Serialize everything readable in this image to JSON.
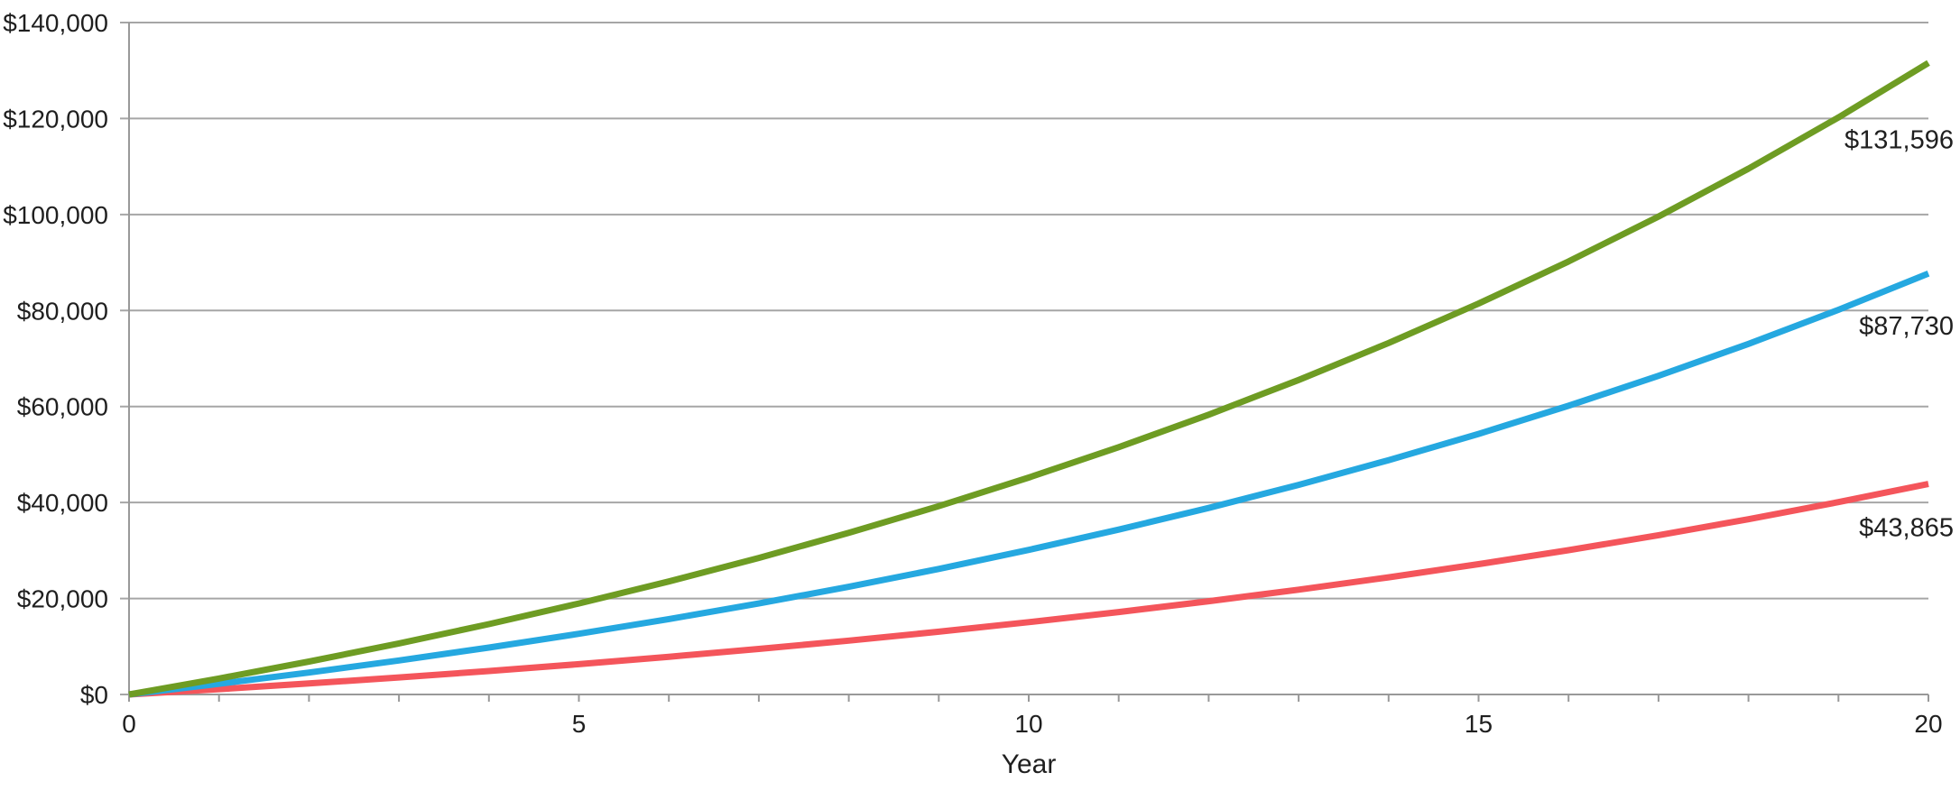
{
  "chart_data": {
    "type": "line",
    "x": [
      0,
      1,
      2,
      3,
      4,
      5,
      6,
      7,
      8,
      9,
      10,
      11,
      12,
      13,
      14,
      15,
      16,
      17,
      18,
      19,
      20
    ],
    "xlabel": "Year",
    "xlim": [
      0,
      20
    ],
    "x_tick_positions": [
      0,
      5,
      10,
      15,
      20
    ],
    "x_tick_labels": [
      "0",
      "5",
      "10",
      "15",
      "20"
    ],
    "x_minor_tick_step": 1,
    "ylim": [
      0,
      140000
    ],
    "y_tick_positions": [
      0,
      20000,
      40000,
      60000,
      80000,
      100000,
      120000,
      140000
    ],
    "y_tick_labels": [
      "$0",
      "$20,000",
      "$40,000",
      "$60,000",
      "$80,000",
      "$100,000",
      "$120,000",
      "$140,000"
    ],
    "grid": "horizontal",
    "legend": "none",
    "series": [
      {
        "id": "low",
        "color": "#F4555B",
        "end_label": "$43,865",
        "values": [
          0,
          1106,
          2286,
          3545,
          4888,
          6321,
          7851,
          9482,
          11223,
          13080,
          15062,
          17177,
          19433,
          21840,
          24409,
          27149,
          30073,
          33193,
          36522,
          40074,
          43865
        ]
      },
      {
        "id": "mid",
        "color": "#25A8E0",
        "end_label": "$87,730",
        "values": [
          0,
          2212,
          4572,
          7090,
          9776,
          12642,
          15702,
          18964,
          22446,
          26160,
          30124,
          34354,
          38866,
          43680,
          48818,
          54298,
          60146,
          66386,
          73044,
          80148,
          87730
        ]
      },
      {
        "id": "high",
        "color": "#6E9C23",
        "end_label": "$131,596",
        "values": [
          0,
          3318,
          6858,
          10635,
          14664,
          18963,
          23553,
          28446,
          33669,
          39240,
          45186,
          51531,
          58299,
          65520,
          73227,
          81447,
          90219,
          99579,
          109566,
          120222,
          131596
        ]
      }
    ],
    "colors": {
      "grid": "#A6A6A6",
      "axis": "#999999",
      "text": "#1F1F1F",
      "background": "#FFFFFF"
    }
  }
}
